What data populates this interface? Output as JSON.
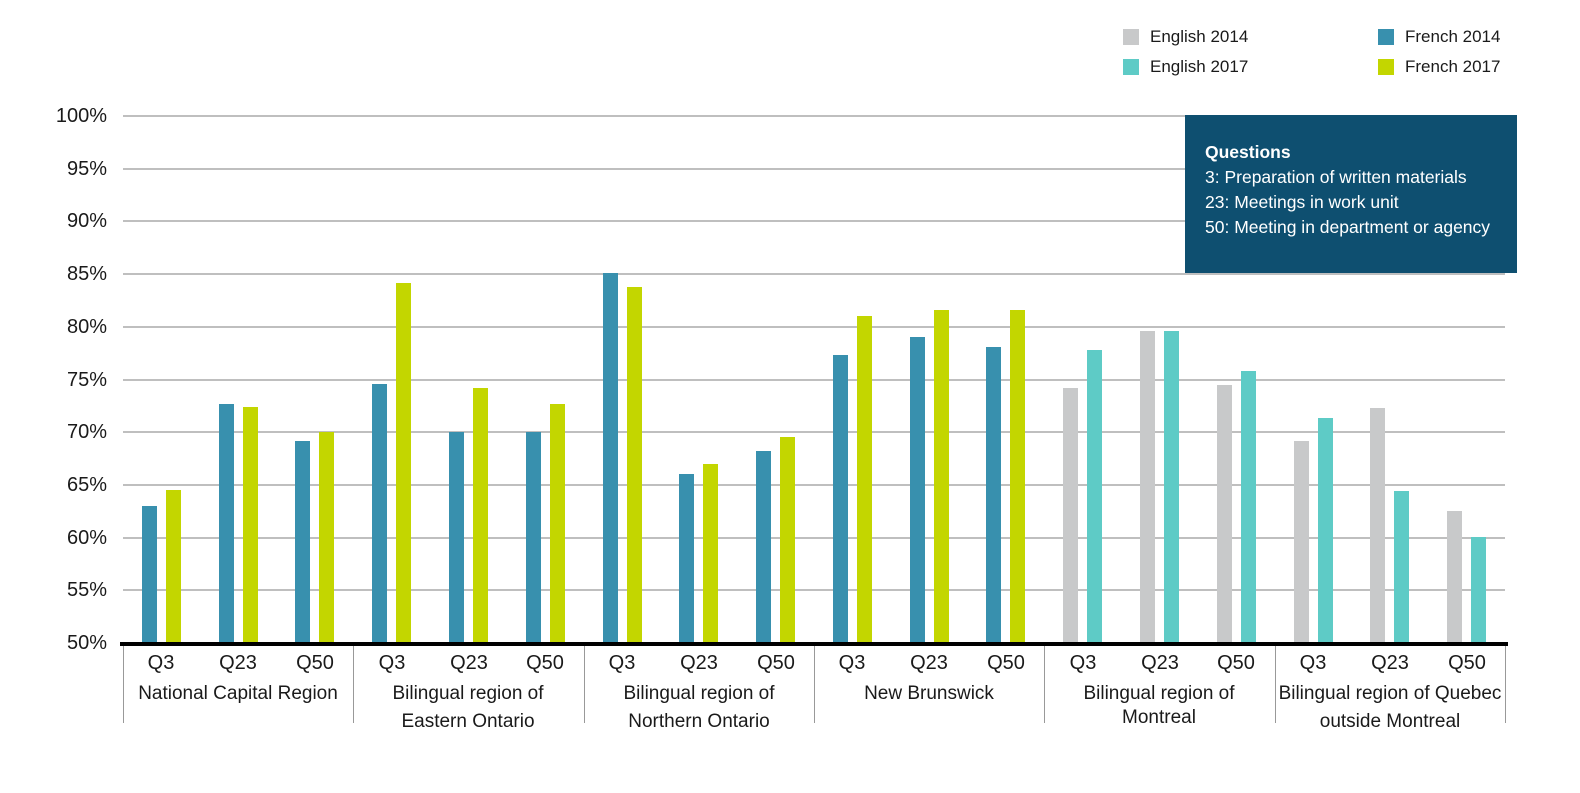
{
  "legend": {
    "items": [
      {
        "label": "English 2014",
        "color": "#c8c9ca"
      },
      {
        "label": "English 2017",
        "color": "#5ecbc6"
      },
      {
        "label": "French 2014",
        "color": "#3890ae"
      },
      {
        "label": "French 2017",
        "color": "#c3d600"
      }
    ]
  },
  "questions_box": {
    "title": "Questions",
    "lines": [
      "3: Preparation of written materials",
      "23: Meetings in work unit",
      "50: Meeting in department or agency"
    ],
    "bg_color": "#0e4f70",
    "text_color": "#ffffff"
  },
  "chart_data": {
    "type": "bar",
    "title": "",
    "xlabel": "",
    "ylabel": "",
    "ylim": [
      50,
      100
    ],
    "ytick_step": 5,
    "ytick_suffix": "%",
    "grid": true,
    "legend_position": "top-right",
    "axis_color": "#000000",
    "gridline_color": "#bfbfbf",
    "question_categories": [
      "Q3",
      "Q23",
      "Q50"
    ],
    "groups": [
      {
        "label": "National Capital Region",
        "label_lines": [
          "National Capital Region"
        ],
        "series": [
          "French 2014",
          "French 2017"
        ],
        "bars": [
          {
            "q": "Q3",
            "values": [
              63.0,
              64.5
            ]
          },
          {
            "q": "Q23",
            "values": [
              72.7,
              72.4
            ]
          },
          {
            "q": "Q50",
            "values": [
              69.2,
              70.0
            ]
          }
        ]
      },
      {
        "label": "Bilingual region of Eastern Ontario",
        "label_lines": [
          "Bilingual region of",
          "Eastern Ontario"
        ],
        "series": [
          "French 2014",
          "French 2017"
        ],
        "bars": [
          {
            "q": "Q3",
            "values": [
              74.6,
              84.2
            ]
          },
          {
            "q": "Q23",
            "values": [
              70.0,
              74.2
            ]
          },
          {
            "q": "Q50",
            "values": [
              70.0,
              72.7
            ]
          }
        ]
      },
      {
        "label": "Bilingual region of Northern Ontario",
        "label_lines": [
          "Bilingual region of",
          "Northern Ontario"
        ],
        "series": [
          "French 2014",
          "French 2017"
        ],
        "bars": [
          {
            "q": "Q3",
            "values": [
              85.1,
              83.8
            ]
          },
          {
            "q": "Q23",
            "values": [
              66.0,
              67.0
            ]
          },
          {
            "q": "Q50",
            "values": [
              68.2,
              69.5
            ]
          }
        ]
      },
      {
        "label": "New Brunswick",
        "label_lines": [
          "New Brunswick"
        ],
        "series": [
          "French 2014",
          "French 2017"
        ],
        "bars": [
          {
            "q": "Q3",
            "values": [
              77.3,
              81.0
            ]
          },
          {
            "q": "Q23",
            "values": [
              79.0,
              81.6
            ]
          },
          {
            "q": "Q50",
            "values": [
              78.1,
              81.6
            ]
          }
        ]
      },
      {
        "label": "Bilingual region of Montreal",
        "label_lines": [
          "Bilingual region of Montreal"
        ],
        "series": [
          "English 2014",
          "English 2017"
        ],
        "bars": [
          {
            "q": "Q3",
            "values": [
              74.2,
              77.8
            ]
          },
          {
            "q": "Q23",
            "values": [
              79.6,
              79.6
            ]
          },
          {
            "q": "Q50",
            "values": [
              74.5,
              75.8
            ]
          }
        ]
      },
      {
        "label": "Bilingual region of Quebec outside Montreal",
        "label_lines": [
          "Bilingual region of Quebec",
          "outside Montreal"
        ],
        "series": [
          "English 2014",
          "English 2017"
        ],
        "bars": [
          {
            "q": "Q3",
            "values": [
              69.2,
              71.3
            ]
          },
          {
            "q": "Q23",
            "values": [
              72.3,
              64.4
            ]
          },
          {
            "q": "Q50",
            "values": [
              62.5,
              60.1
            ]
          }
        ]
      }
    ]
  }
}
